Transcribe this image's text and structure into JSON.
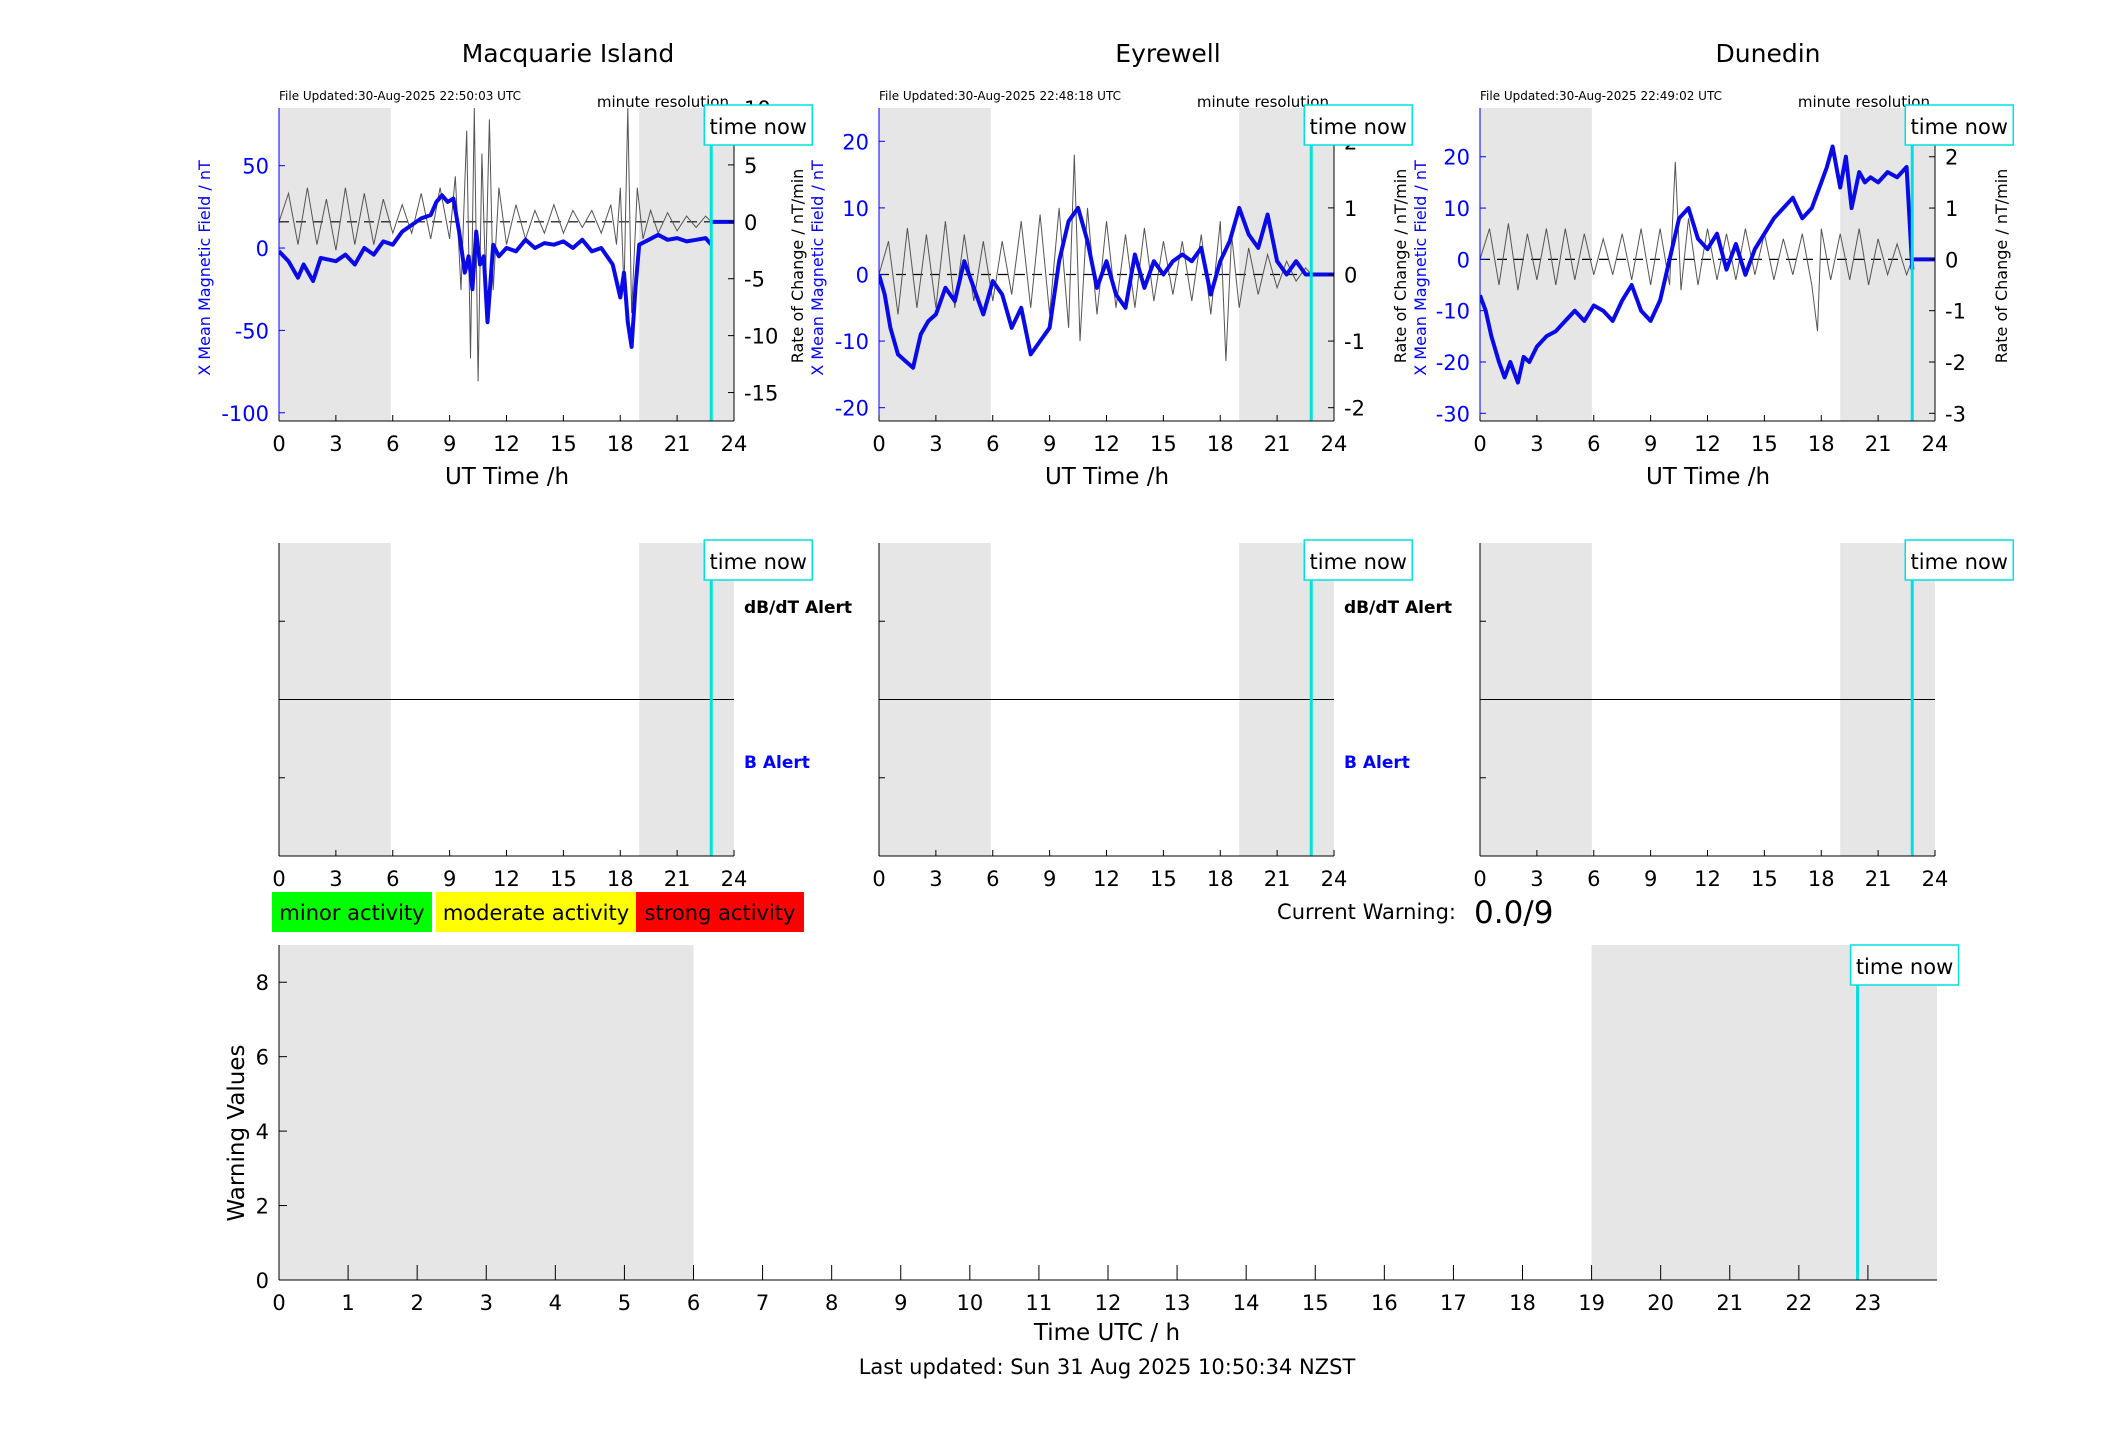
{
  "colors": {
    "field_line": "#0a0ae6",
    "rate_line": "#555555",
    "axis_blue": "#0000ff",
    "night_shade": "#e6e6e6",
    "time_now": "#00e0e0",
    "minor": "#00ff00",
    "moderate": "#ffff00",
    "strong": "#ff0000"
  },
  "common": {
    "time_now_label": "time now",
    "resolution_label": "minute resolution",
    "xlabel": "UT Time /h",
    "left_ylabel": "X Mean Magnetic Field / nT",
    "right_ylabel": "Rate of Change / nT/min",
    "dbdt_alert_label": "dB/dT Alert",
    "b_alert_label": "B Alert"
  },
  "chart_data": [
    {
      "type": "line",
      "id": "mqi",
      "title": "Macquarie Island",
      "file_updated": "File Updated:30-Aug-2025 22:50:03 UTC",
      "xlim": [
        0,
        24
      ],
      "x_ticks": [
        0,
        3,
        6,
        9,
        12,
        15,
        18,
        21,
        24
      ],
      "ylim_left": [
        -105,
        85
      ],
      "left_ticks": [
        50,
        0,
        -50,
        -100
      ],
      "ylim_right": [
        -17.5,
        10
      ],
      "right_ticks": [
        10,
        5,
        0,
        -5,
        -10,
        -15
      ],
      "night_bands": [
        [
          0,
          5.9
        ],
        [
          19.0,
          24
        ]
      ],
      "time_now": 22.8,
      "series": [
        {
          "axis": "left",
          "x": [
            0,
            0.5,
            1,
            1.3,
            1.8,
            2.2,
            3,
            3.5,
            4,
            4.5,
            5,
            5.5,
            6,
            6.5,
            7,
            7.5,
            8,
            8.3,
            8.6,
            8.9,
            9.2,
            9.5,
            9.8,
            10,
            10.2,
            10.4,
            10.6,
            10.8,
            11,
            11.3,
            11.6,
            12,
            12.5,
            13,
            13.5,
            14,
            14.5,
            15,
            15.5,
            16,
            16.5,
            17,
            17.3,
            17.6,
            18,
            18.2,
            18.4,
            18.6,
            18.8,
            19,
            19.5,
            20,
            20.5,
            21,
            21.5,
            22,
            22.5,
            22.8
          ],
          "y": [
            -2,
            -8,
            -18,
            -10,
            -20,
            -6,
            -8,
            -4,
            -10,
            0,
            -4,
            4,
            2,
            10,
            14,
            18,
            20,
            28,
            32,
            28,
            30,
            10,
            -15,
            -5,
            -25,
            10,
            -10,
            -5,
            -45,
            2,
            -5,
            0,
            -2,
            5,
            0,
            3,
            2,
            4,
            0,
            5,
            -2,
            0,
            -5,
            -10,
            -30,
            -15,
            -45,
            -60,
            -25,
            2,
            5,
            8,
            5,
            6,
            4,
            5,
            6,
            2
          ]
        },
        {
          "axis": "right",
          "x": [
            0,
            0.5,
            1,
            1.5,
            2,
            2.5,
            3,
            3.5,
            4,
            4.5,
            5,
            5.5,
            6,
            6.5,
            7,
            7.5,
            8,
            8.5,
            9,
            9.3,
            9.6,
            9.9,
            10.1,
            10.3,
            10.5,
            10.7,
            10.9,
            11.1,
            11.3,
            11.6,
            12,
            12.5,
            13,
            13.5,
            14,
            14.5,
            15,
            15.5,
            16,
            16.5,
            17,
            17.5,
            17.8,
            18,
            18.2,
            18.4,
            18.6,
            18.9,
            19.2,
            19.6,
            20,
            20.5,
            21,
            21.5,
            22,
            22.5,
            22.8
          ],
          "y": [
            0,
            2.5,
            -2,
            3,
            -2,
            2,
            -2.5,
            3,
            -2,
            2.5,
            -2,
            2,
            -1,
            1.5,
            -1,
            2.5,
            -1.5,
            3,
            -1.5,
            4,
            -6,
            8,
            -12,
            10,
            -14,
            6,
            -5,
            9,
            -6,
            3,
            -2,
            1.5,
            -1.5,
            1,
            -1,
            1.5,
            -1,
            1,
            -0.5,
            1,
            -1,
            1.5,
            -2,
            3,
            -6,
            10,
            -8,
            3,
            -1.5,
            1,
            -1,
            0.8,
            -0.8,
            0.5,
            -0.5,
            0.5,
            0
          ]
        }
      ]
    },
    {
      "type": "line",
      "id": "eyr",
      "title": "Eyrewell",
      "file_updated": "File Updated:30-Aug-2025 22:48:18 UTC",
      "xlim": [
        0,
        24
      ],
      "x_ticks": [
        0,
        3,
        6,
        9,
        12,
        15,
        18,
        21,
        24
      ],
      "ylim_left": [
        -22,
        25
      ],
      "left_ticks": [
        20,
        10,
        0,
        -10,
        -20
      ],
      "ylim_right": [
        -2.2,
        2.5
      ],
      "right_ticks": [
        2,
        1,
        0,
        -1,
        -2
      ],
      "night_bands": [
        [
          0,
          5.9
        ],
        [
          19.0,
          24
        ]
      ],
      "time_now": 22.8,
      "series": [
        {
          "axis": "left",
          "x": [
            0,
            0.3,
            0.6,
            1,
            1.4,
            1.8,
            2.2,
            2.6,
            3,
            3.5,
            4,
            4.5,
            5,
            5.5,
            6,
            6.5,
            7,
            7.5,
            8,
            8.5,
            9,
            9.5,
            10,
            10.5,
            11,
            11.5,
            12,
            12.5,
            13,
            13.5,
            14,
            14.5,
            15,
            15.5,
            16,
            16.5,
            17,
            17.5,
            18,
            18.5,
            19,
            19.5,
            20,
            20.5,
            21,
            21.5,
            22,
            22.5,
            22.8
          ],
          "y": [
            0,
            -3,
            -8,
            -12,
            -13,
            -14,
            -9,
            -7,
            -6,
            -2,
            -4,
            2,
            -2,
            -6,
            -1,
            -3,
            -8,
            -5,
            -12,
            -10,
            -8,
            2,
            8,
            10,
            5,
            -2,
            2,
            -3,
            -5,
            3,
            -2,
            2,
            0,
            2,
            3,
            2,
            4,
            -3,
            2,
            5,
            10,
            6,
            4,
            9,
            2,
            0,
            2,
            0,
            0
          ]
        },
        {
          "axis": "right",
          "x": [
            0,
            0.5,
            1,
            1.5,
            2,
            2.5,
            3,
            3.5,
            4,
            4.5,
            5,
            5.5,
            6,
            6.5,
            7,
            7.5,
            8,
            8.5,
            9,
            9.5,
            10,
            10.3,
            10.6,
            11,
            11.5,
            12,
            12.5,
            13,
            13.5,
            14,
            14.5,
            15,
            15.5,
            16,
            16.5,
            17,
            17.5,
            18,
            18.3,
            18.6,
            19,
            19.5,
            20,
            20.5,
            21,
            21.5,
            22,
            22.5,
            22.8
          ],
          "y": [
            0,
            0.5,
            -0.6,
            0.7,
            -0.5,
            0.6,
            -0.5,
            0.8,
            -0.5,
            0.6,
            -0.4,
            0.5,
            -0.4,
            0.5,
            -0.3,
            0.8,
            -0.5,
            0.9,
            -0.6,
            1,
            -0.8,
            1.8,
            -1,
            1,
            -0.6,
            0.8,
            -0.5,
            0.6,
            -0.5,
            0.7,
            -0.4,
            0.5,
            -0.3,
            0.5,
            -0.4,
            0.6,
            -0.6,
            0.8,
            -1.3,
            0.6,
            -0.5,
            0.4,
            -0.3,
            0.3,
            -0.2,
            0.2,
            -0.1,
            0.1,
            0
          ]
        }
      ]
    },
    {
      "type": "line",
      "id": "dun",
      "title": "Dunedin",
      "file_updated": "File Updated:30-Aug-2025 22:49:02 UTC",
      "xlim": [
        0,
        24
      ],
      "x_ticks": [
        0,
        3,
        6,
        9,
        12,
        15,
        18,
        21,
        24
      ],
      "ylim_left": [
        -31.5,
        29.5
      ],
      "left_ticks": [
        20,
        10,
        0,
        -10,
        -20,
        -30
      ],
      "ylim_right": [
        -3.15,
        2.95
      ],
      "right_ticks": [
        2,
        1,
        0,
        -1,
        -2,
        -3
      ],
      "night_bands": [
        [
          0,
          5.9
        ],
        [
          19.0,
          24
        ]
      ],
      "time_now": 22.8,
      "series": [
        {
          "axis": "left",
          "x": [
            0,
            0.3,
            0.6,
            1,
            1.3,
            1.6,
            2,
            2.3,
            2.6,
            3,
            3.5,
            4,
            4.5,
            5,
            5.5,
            6,
            6.5,
            7,
            7.5,
            8,
            8.5,
            9,
            9.5,
            10,
            10.5,
            11,
            11.5,
            12,
            12.5,
            13,
            13.5,
            14,
            14.5,
            15,
            15.5,
            16,
            16.5,
            17,
            17.5,
            18,
            18.3,
            18.6,
            19,
            19.3,
            19.6,
            20,
            20.3,
            20.6,
            21,
            21.5,
            22,
            22.5,
            22.8
          ],
          "y": [
            -7,
            -10,
            -15,
            -20,
            -23,
            -20,
            -24,
            -19,
            -20,
            -17,
            -15,
            -14,
            -12,
            -10,
            -12,
            -9,
            -10,
            -12,
            -8,
            -5,
            -10,
            -12,
            -8,
            0,
            8,
            10,
            4,
            2,
            5,
            -2,
            3,
            -3,
            2,
            5,
            8,
            10,
            12,
            8,
            10,
            15,
            18,
            22,
            14,
            20,
            10,
            17,
            15,
            16,
            15,
            17,
            16,
            18,
            -2
          ]
        },
        {
          "axis": "right",
          "x": [
            0,
            0.5,
            1,
            1.5,
            2,
            2.5,
            3,
            3.5,
            4,
            4.5,
            5,
            5.5,
            6,
            6.5,
            7,
            7.5,
            8,
            8.5,
            9,
            9.5,
            10,
            10.3,
            10.6,
            11,
            11.5,
            12,
            12.5,
            13,
            13.5,
            14,
            14.5,
            15,
            15.5,
            16,
            16.5,
            17,
            17.5,
            17.8,
            18,
            18.5,
            19,
            19.5,
            20,
            20.5,
            21,
            21.5,
            22,
            22.5,
            22.8
          ],
          "y": [
            0,
            0.6,
            -0.5,
            0.7,
            -0.6,
            0.5,
            -0.4,
            0.6,
            -0.5,
            0.6,
            -0.4,
            0.5,
            -0.3,
            0.4,
            -0.3,
            0.5,
            -0.4,
            0.6,
            -0.5,
            0.6,
            -0.5,
            1.9,
            -0.6,
            0.8,
            -0.5,
            0.6,
            -0.4,
            0.5,
            -0.4,
            0.6,
            -0.3,
            0.5,
            -0.4,
            0.4,
            -0.3,
            0.5,
            -0.5,
            -1.4,
            0.6,
            -0.4,
            0.5,
            -0.4,
            0.6,
            -0.5,
            0.4,
            -0.3,
            0.3,
            -0.3,
            0
          ]
        }
      ]
    },
    {
      "type": "line",
      "id": "alert_mqi",
      "xlim": [
        0,
        24
      ],
      "x_ticks": [
        0,
        3,
        6,
        9,
        12,
        15,
        18,
        21,
        24
      ],
      "night_bands": [
        [
          0,
          5.9
        ],
        [
          19.0,
          24
        ]
      ],
      "time_now": 22.8,
      "show_labels": true,
      "series": []
    },
    {
      "type": "line",
      "id": "alert_eyr",
      "xlim": [
        0,
        24
      ],
      "x_ticks": [
        0,
        3,
        6,
        9,
        12,
        15,
        18,
        21,
        24
      ],
      "night_bands": [
        [
          0,
          5.9
        ],
        [
          19.0,
          24
        ]
      ],
      "time_now": 22.8,
      "show_labels": true,
      "series": []
    },
    {
      "type": "line",
      "id": "alert_dun",
      "xlim": [
        0,
        24
      ],
      "x_ticks": [
        0,
        3,
        6,
        9,
        12,
        15,
        18,
        21,
        24
      ],
      "night_bands": [
        [
          0,
          5.9
        ],
        [
          19.0,
          24
        ]
      ],
      "time_now": 22.8,
      "show_labels": false,
      "series": []
    },
    {
      "type": "line",
      "id": "warning",
      "xlabel": "Time UTC / h",
      "ylabel": "Warning Values",
      "xlim": [
        0,
        24
      ],
      "ylim": [
        0,
        9
      ],
      "x_ticks": [
        0,
        1,
        2,
        3,
        4,
        5,
        6,
        7,
        8,
        9,
        10,
        11,
        12,
        13,
        14,
        15,
        16,
        17,
        18,
        19,
        20,
        21,
        22,
        23
      ],
      "y_ticks": [
        0,
        2,
        4,
        6,
        8
      ],
      "night_bands": [
        [
          0,
          6
        ],
        [
          19,
          24
        ]
      ],
      "time_now": 22.85,
      "series": []
    }
  ],
  "legend": {
    "minor": "minor activity",
    "moderate": "moderate activity",
    "strong": "strong activity"
  },
  "current_warning": {
    "label": "Current Warning:",
    "value": "0.0/9"
  },
  "footer": {
    "last_updated": "Last updated: Sun 31 Aug 2025 10:50:34 NZST"
  }
}
